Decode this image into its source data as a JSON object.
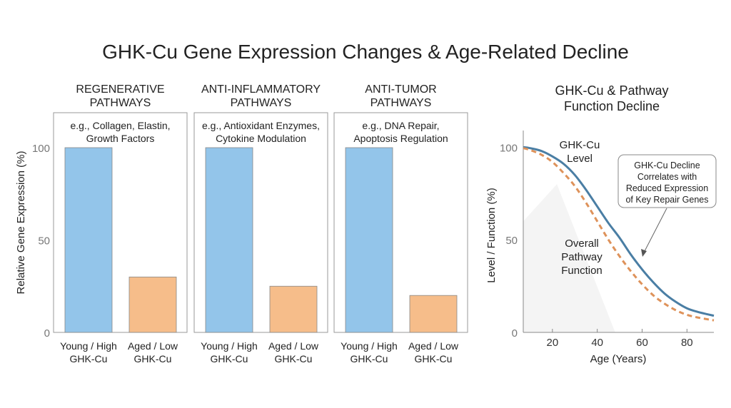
{
  "title": "GHK-Cu Gene Expression Changes & Age-Related Decline",
  "colors": {
    "young": "#93c5ea",
    "aged": "#f6bd8a",
    "ghk_line": "#4a7ea4",
    "pathway_line": "#de925a",
    "axis": "#777777",
    "text": "#222222"
  },
  "chart_data": [
    {
      "type": "bar",
      "ylabel": "Relative Gene Expression (%)",
      "ylim": [
        0,
        100
      ],
      "yticks": [
        "0",
        "50",
        "100"
      ],
      "grid": false,
      "panels": [
        {
          "title": [
            "REGENERATIVE",
            "PATHWAYS"
          ],
          "note": [
            "e.g., Collagen, Elastin,",
            "Growth Factors"
          ],
          "categories": [
            [
              "Young / High",
              "GHK-Cu"
            ],
            [
              "Aged / Low",
              "GHK-Cu"
            ]
          ],
          "values": [
            100,
            30
          ]
        },
        {
          "title": [
            "ANTI-INFLAMMATORY",
            "PATHWAYS"
          ],
          "note": [
            "e.g., Antioxidant Enzymes,",
            "Cytokine Modulation"
          ],
          "categories": [
            [
              "Young / High",
              "GHK-Cu"
            ],
            [
              "Aged / Low",
              "GHK-Cu"
            ]
          ],
          "values": [
            100,
            25
          ]
        },
        {
          "title": [
            "ANTI-TUMOR",
            "PATHWAYS"
          ],
          "note": [
            "e.g., DNA Repair,",
            "Apoptosis Regulation"
          ],
          "categories": [
            [
              "Young / High",
              "GHK-Cu"
            ],
            [
              "Aged / Low",
              "GHK-Cu"
            ]
          ],
          "values": [
            100,
            20
          ]
        }
      ]
    },
    {
      "type": "line",
      "title": [
        "GHK-Cu & Pathway",
        "Function Decline"
      ],
      "xlabel": "Age (Years)",
      "ylabel": "Level / Function (%)",
      "xlim": [
        7,
        92
      ],
      "ylim": [
        0,
        109
      ],
      "xticks": [
        "20",
        "40",
        "60",
        "80"
      ],
      "yticks": [
        "0",
        "50",
        "100"
      ],
      "grid": false,
      "x": [
        7,
        10,
        15,
        20,
        25,
        30,
        35,
        40,
        45,
        50,
        55,
        60,
        65,
        70,
        75,
        80,
        85,
        92
      ],
      "series": [
        {
          "name": [
            "GHK-Cu",
            "Level"
          ],
          "style": "solid",
          "values": [
            100,
            99.5,
            98,
            95,
            91,
            85,
            77,
            68,
            59,
            51,
            42,
            34,
            27,
            21,
            16.5,
            13,
            11,
            9
          ]
        },
        {
          "name": [
            "Overall",
            "Pathway",
            "Function"
          ],
          "style": "dashed",
          "values": [
            99.5,
            98.5,
            96,
            92,
            86,
            79,
            70,
            60,
            50,
            41,
            33,
            26,
            20,
            15.5,
            12,
            9.5,
            8,
            6.5
          ]
        }
      ],
      "annotation": [
        "GHK-Cu Decline",
        "Correlates with",
        "Reduced Expression",
        "of Key Repair Genes"
      ]
    }
  ]
}
